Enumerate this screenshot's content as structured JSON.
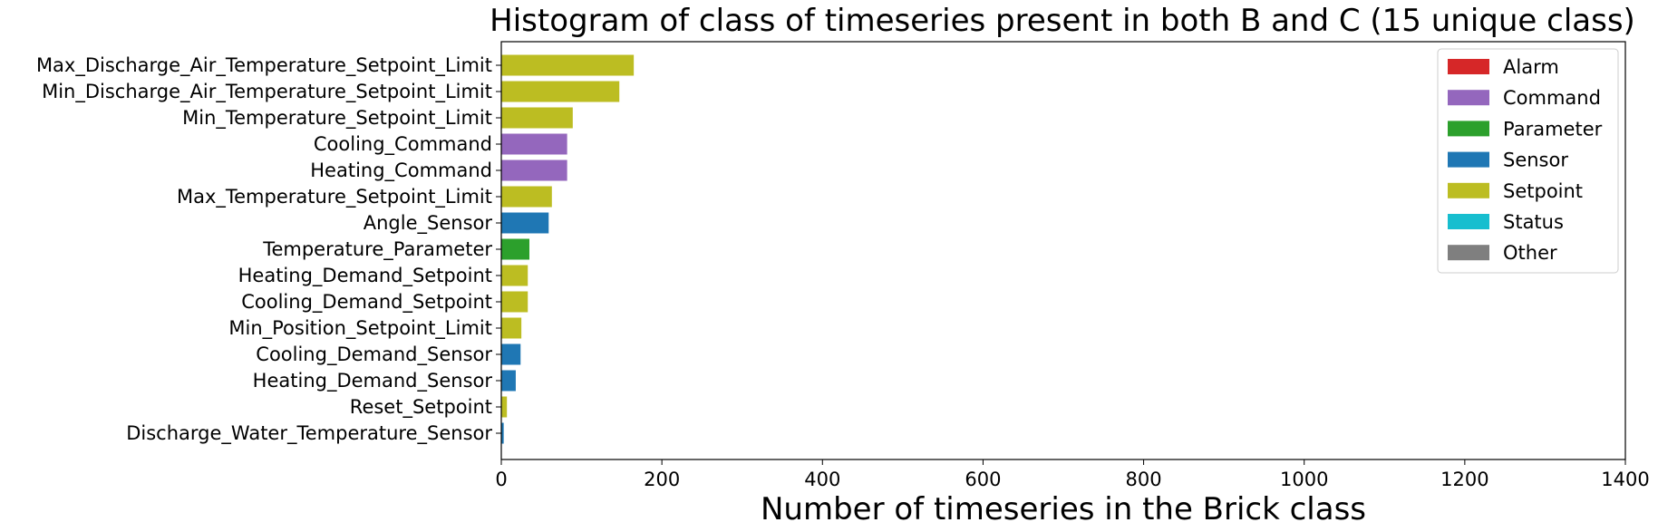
{
  "chart_data": {
    "type": "bar",
    "orientation": "horizontal",
    "title": "Histogram of class of timeseries present in both B and C (15 unique class)",
    "xlabel": "Number of timeseries in the Brick class",
    "ylabel": "",
    "xlim": [
      0,
      1400
    ],
    "xticks": [
      "0",
      "200",
      "400",
      "600",
      "800",
      "1000",
      "1200",
      "1400"
    ],
    "grid": false,
    "legend_position": "top-right",
    "categories": [
      "Max_Discharge_Air_Temperature_Setpoint_Limit",
      "Min_Discharge_Air_Temperature_Setpoint_Limit",
      "Min_Temperature_Setpoint_Limit",
      "Cooling_Command",
      "Heating_Command",
      "Max_Temperature_Setpoint_Limit",
      "Angle_Sensor",
      "Temperature_Parameter",
      "Heating_Demand_Setpoint",
      "Cooling_Demand_Setpoint",
      "Min_Position_Setpoint_Limit",
      "Cooling_Demand_Sensor",
      "Heating_Demand_Sensor",
      "Reset_Setpoint",
      "Discharge_Water_Temperature_Sensor"
    ],
    "values": [
      165,
      147,
      89,
      82,
      82,
      63,
      59,
      35,
      33,
      33,
      25,
      24,
      18,
      7,
      3
    ],
    "groups": [
      "Setpoint",
      "Setpoint",
      "Setpoint",
      "Command",
      "Command",
      "Setpoint",
      "Sensor",
      "Parameter",
      "Setpoint",
      "Setpoint",
      "Setpoint",
      "Sensor",
      "Sensor",
      "Setpoint",
      "Sensor"
    ],
    "legend": [
      {
        "name": "Alarm",
        "color": "#d62728"
      },
      {
        "name": "Command",
        "color": "#9467bd"
      },
      {
        "name": "Parameter",
        "color": "#2ca02c"
      },
      {
        "name": "Sensor",
        "color": "#1f77b4"
      },
      {
        "name": "Setpoint",
        "color": "#bcbd22"
      },
      {
        "name": "Status",
        "color": "#17becf"
      },
      {
        "name": "Other",
        "color": "#7f7f7f"
      }
    ]
  }
}
